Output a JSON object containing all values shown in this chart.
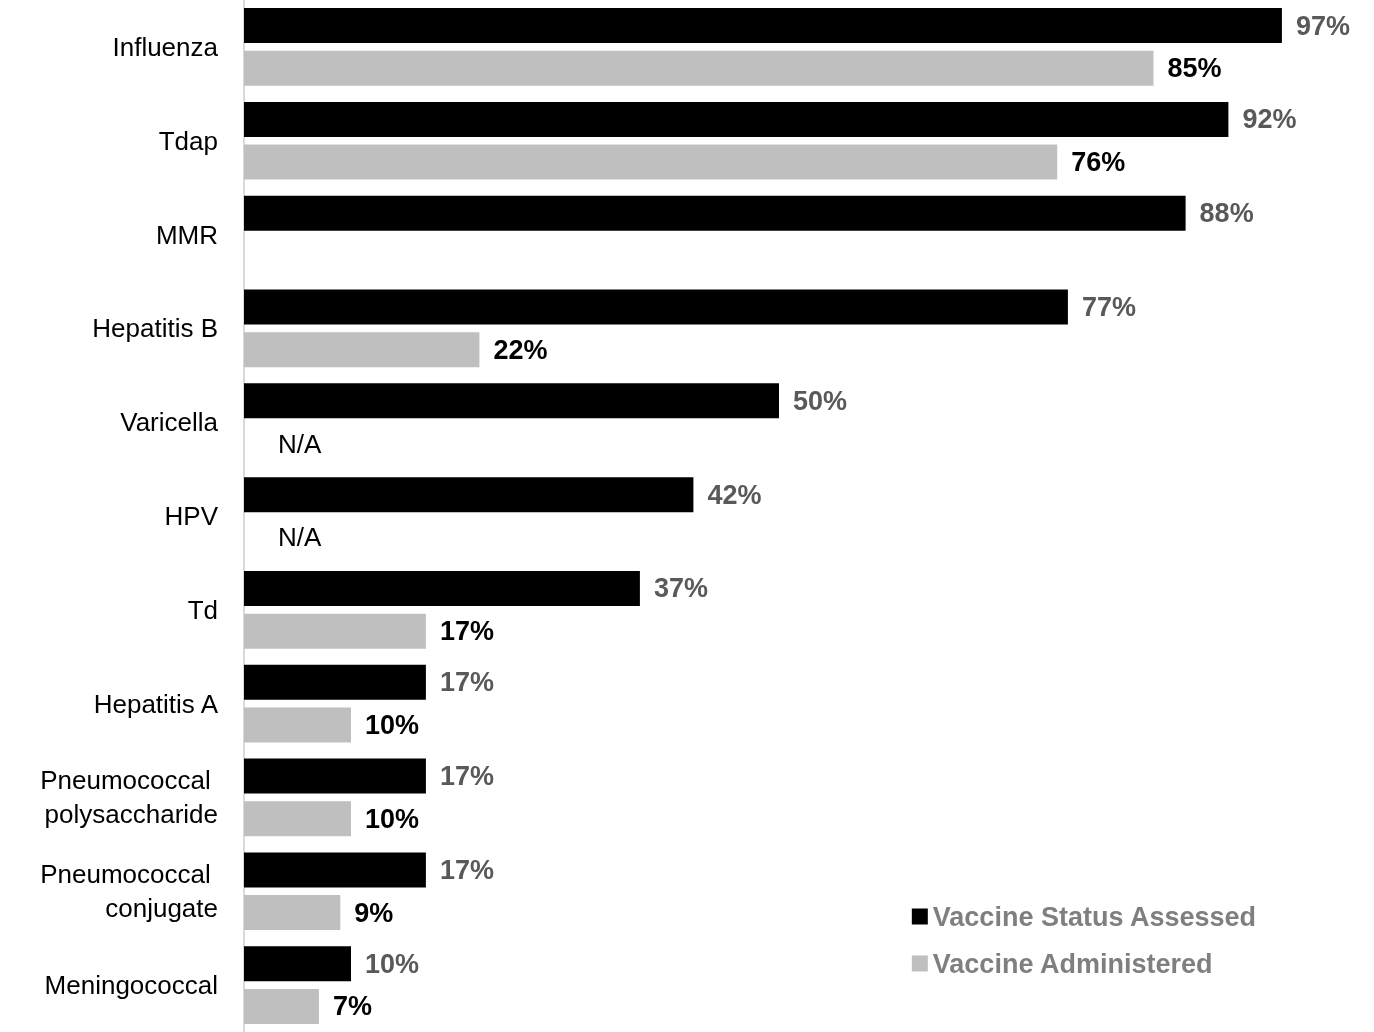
{
  "chart_data": {
    "type": "bar",
    "orientation": "horizontal",
    "categories": [
      "Influenza",
      "Tdap",
      "MMR",
      "Hepatitis B",
      "Varicella",
      "HPV",
      "Td",
      "Hepatitis A",
      "Pneumococcal polysaccharide",
      "Pneumococcal conjugate",
      "Meningococcal"
    ],
    "tick_labels": "y",
    "legend": "bottom right",
    "series": [
      {
        "name": "Vaccine Status Assessed",
        "color": "#000000",
        "values": [
          97,
          92,
          88,
          77,
          50,
          42,
          37,
          17,
          17,
          17,
          10
        ],
        "value_labels": [
          "97%",
          "92%",
          "88%",
          "77%",
          "50%",
          "42%",
          "37%",
          "17%",
          "17%",
          "17%",
          "10%"
        ]
      },
      {
        "name": "Vaccine Administered",
        "color": "#bfbfbf",
        "values": [
          85,
          76,
          null,
          22,
          null,
          null,
          17,
          10,
          10,
          9,
          7
        ],
        "value_labels": [
          "85%",
          "76%",
          null,
          "22%",
          "N/A",
          "N/A",
          "17%",
          "10%",
          "10%",
          "9%",
          "7%"
        ]
      }
    ]
  }
}
